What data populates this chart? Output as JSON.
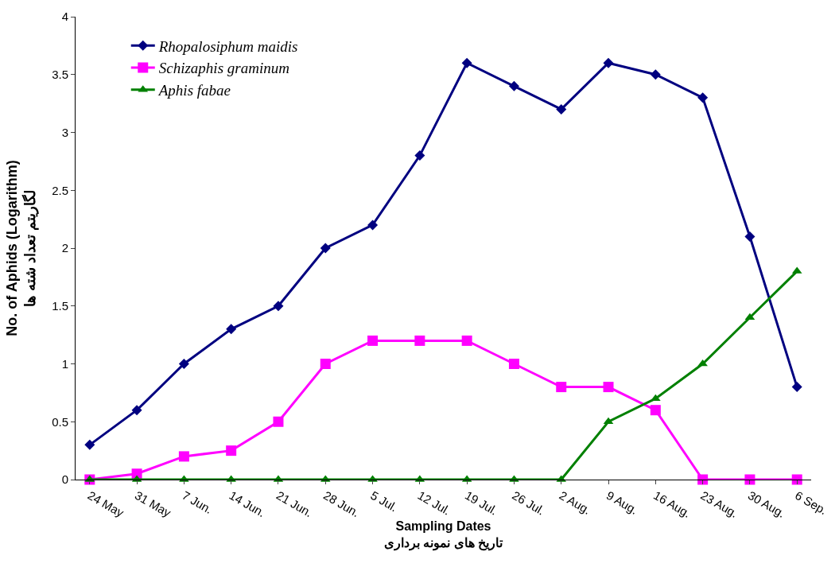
{
  "chart_data": {
    "type": "line",
    "xlabel": "Sampling Dates\nتاریخ های نمونه برداری",
    "ylabel": "No. of Aphids (Logarithm)\nلگاریتم تعداد شته ها",
    "categories": [
      "24 May",
      "31 May",
      "7 Jun.",
      "14 Jun.",
      "21 Jun.",
      "28 Jun.",
      "5 Jul.",
      "12 Jul.",
      "19 Jul.",
      "26 Jul.",
      "2 Aug.",
      "9 Aug.",
      "16 Aug.",
      "23 Aug.",
      "30 Aug.",
      "6 Sep."
    ],
    "series": [
      {
        "name": "Rhopalosiphum maidis",
        "color": "#000080",
        "marker": "diamond",
        "values": [
          0.3,
          0.6,
          1.0,
          1.3,
          1.5,
          2.0,
          2.2,
          2.8,
          3.6,
          3.4,
          3.2,
          3.6,
          3.5,
          3.3,
          2.1,
          0.8
        ]
      },
      {
        "name": "Schizaphis graminum",
        "color": "#ff00ff",
        "marker": "square",
        "values": [
          0,
          0.05,
          0.2,
          0.25,
          0.5,
          1.0,
          1.2,
          1.2,
          1.2,
          1.0,
          0.8,
          0.8,
          0.6,
          0,
          0,
          0
        ]
      },
      {
        "name": "Aphis fabae",
        "color": "#008000",
        "marker": "triangle",
        "values": [
          0,
          0,
          0,
          0,
          0,
          0,
          0,
          0,
          0,
          0,
          0,
          0.5,
          0.7,
          1.0,
          1.4,
          1.8
        ]
      }
    ],
    "ylim": [
      0,
      4
    ],
    "yticks": [
      0,
      0.5,
      1,
      1.5,
      2,
      2.5,
      3,
      3.5,
      4
    ],
    "grid": false,
    "legend": "top left",
    "line_style": "solid"
  }
}
